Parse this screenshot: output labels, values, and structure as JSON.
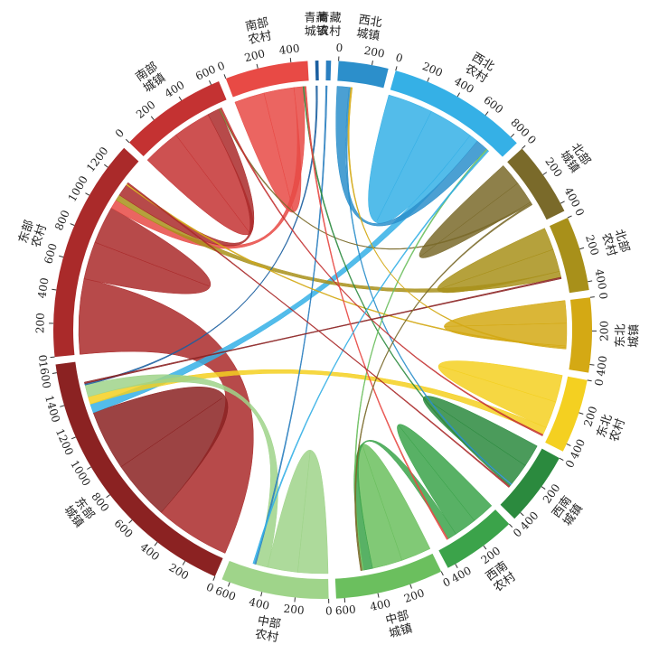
{
  "chart_data": {
    "type": "chord",
    "sectors": [
      {
        "name": [
          "青藏",
          "城镇"
        ],
        "total": 20,
        "color": "#1b5fa0"
      },
      {
        "name": [
          "青藏",
          "农村"
        ],
        "total": 30,
        "color": "#2a7fc0"
      },
      {
        "name": [
          "西北",
          "城镇"
        ],
        "total": 300,
        "color": "#2c8fcb",
        "ticks": [
          0,
          200
        ]
      },
      {
        "name": [
          "西北",
          "农村"
        ],
        "total": 850,
        "color": "#35b0e6",
        "ticks": [
          0,
          200,
          400,
          600,
          800
        ]
      },
      {
        "name": [
          "北部",
          "城镇"
        ],
        "total": 450,
        "color": "#7a6a2a",
        "ticks": [
          0,
          200,
          400
        ]
      },
      {
        "name": [
          "北部",
          "农村"
        ],
        "total": 450,
        "color": "#a8901a",
        "ticks": [
          0,
          200,
          400
        ]
      },
      {
        "name": [
          "东北",
          "城镇"
        ],
        "total": 450,
        "color": "#d4a914",
        "ticks": [
          0,
          200,
          400
        ]
      },
      {
        "name": [
          "东北",
          "农村"
        ],
        "total": 450,
        "color": "#f4d021",
        "ticks": [
          0,
          200,
          400
        ]
      },
      {
        "name": [
          "西南",
          "城镇"
        ],
        "total": 450,
        "color": "#2b8a3e",
        "ticks": [
          0,
          200,
          400
        ]
      },
      {
        "name": [
          "西南",
          "农村"
        ],
        "total": 450,
        "color": "#3ba34a",
        "ticks": [
          0,
          200,
          400
        ]
      },
      {
        "name": [
          "中部",
          "城镇"
        ],
        "total": 650,
        "color": "#6bbf5e",
        "ticks": [
          0,
          200,
          400,
          600
        ]
      },
      {
        "name": [
          "中部",
          "农村"
        ],
        "total": 650,
        "color": "#9fd48a",
        "ticks": [
          0,
          200,
          400,
          600
        ]
      },
      {
        "name": [
          "东部",
          "城镇"
        ],
        "total": 1650,
        "color": "#8b2222",
        "ticks": [
          0,
          200,
          400,
          600,
          800,
          1000,
          1200,
          1400,
          1600
        ]
      },
      {
        "name": [
          "东部",
          "农村"
        ],
        "total": 1350,
        "color": "#aa2a2a",
        "ticks": [
          0,
          200,
          400,
          600,
          800,
          1000,
          1200
        ]
      },
      {
        "name": [
          "南部",
          "城镇"
        ],
        "total": 650,
        "color": "#c43232",
        "ticks": [
          0,
          200,
          400,
          600
        ]
      },
      {
        "name": [
          "南部",
          "农村"
        ],
        "total": 500,
        "color": "#e84a45",
        "ticks": [
          0,
          200,
          400
        ]
      }
    ],
    "links": [
      {
        "source": 13,
        "target": 12,
        "value": 500
      },
      {
        "source": 12,
        "target": 12,
        "value": 400
      },
      {
        "source": 13,
        "target": 13,
        "value": 250
      },
      {
        "source": 14,
        "target": 14,
        "value": 250
      },
      {
        "source": 15,
        "target": 15,
        "value": 200
      },
      {
        "source": 3,
        "target": 3,
        "value": 300
      },
      {
        "source": 3,
        "target": 12,
        "value": 60
      },
      {
        "source": 2,
        "target": 3,
        "value": 80
      },
      {
        "source": 4,
        "target": 4,
        "value": 150
      },
      {
        "source": 5,
        "target": 5,
        "value": 150
      },
      {
        "source": 6,
        "target": 6,
        "value": 150
      },
      {
        "source": 7,
        "target": 7,
        "value": 180
      },
      {
        "source": 7,
        "target": 12,
        "value": 50
      },
      {
        "source": 8,
        "target": 8,
        "value": 150
      },
      {
        "source": 9,
        "target": 9,
        "value": 150
      },
      {
        "source": 10,
        "target": 10,
        "value": 200
      },
      {
        "source": 11,
        "target": 11,
        "value": 200
      },
      {
        "source": 11,
        "target": 12,
        "value": 80
      },
      {
        "source": 15,
        "target": 13,
        "value": 60
      },
      {
        "source": 9,
        "target": 10,
        "value": 60
      },
      {
        "source": 5,
        "target": 13,
        "value": 40
      },
      {
        "source": 13,
        "target": 14,
        "value": 80
      },
      {
        "source": 0,
        "target": 12,
        "value": 10
      },
      {
        "source": 1,
        "target": 11,
        "value": 10
      },
      {
        "source": 2,
        "target": 8,
        "value": 10
      },
      {
        "source": 4,
        "target": 14,
        "value": 10
      },
      {
        "source": 6,
        "target": 13,
        "value": 10
      },
      {
        "source": 8,
        "target": 15,
        "value": 10
      },
      {
        "source": 10,
        "target": 3,
        "value": 10
      },
      {
        "source": 14,
        "target": 7,
        "value": 10
      },
      {
        "source": 12,
        "target": 5,
        "value": 10
      },
      {
        "source": 15,
        "target": 9,
        "value": 10
      },
      {
        "source": 3,
        "target": 11,
        "value": 10
      },
      {
        "source": 4,
        "target": 10,
        "value": 10
      },
      {
        "source": 6,
        "target": 2,
        "value": 10
      },
      {
        "source": 13,
        "target": 8,
        "value": 10
      }
    ]
  }
}
